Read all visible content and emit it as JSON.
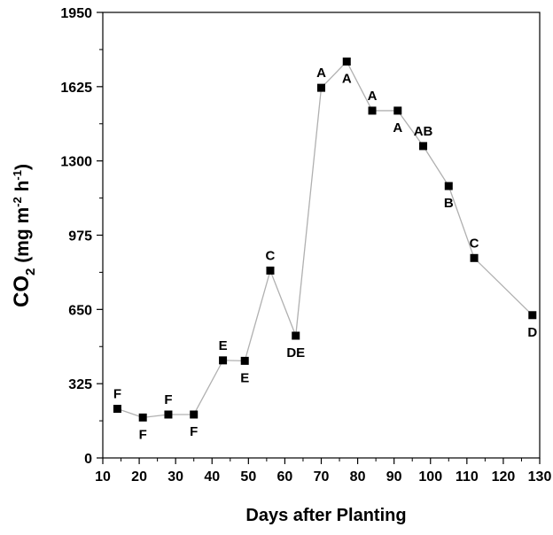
{
  "chart_data": {
    "type": "line",
    "title": "",
    "xlabel": "Days after Planting",
    "ylabel": {
      "main": "CO",
      "sub": "2",
      "unit_open": " (mg m",
      "unit_sup1": "-2",
      "unit_mid": " h",
      "unit_sup2": "-1",
      "unit_close": ")"
    },
    "xlim": [
      10,
      130
    ],
    "ylim": [
      0,
      1950
    ],
    "xticks": [
      10,
      20,
      30,
      40,
      50,
      60,
      70,
      80,
      90,
      100,
      110,
      120,
      130
    ],
    "yticks": [
      0,
      325,
      650,
      975,
      1300,
      1625,
      1950
    ],
    "grid": false,
    "marker": "square",
    "line_color": "#b0b0b0",
    "marker_color": "#000000",
    "series": [
      {
        "x": [
          14,
          21,
          28,
          35,
          43,
          49,
          56,
          63,
          70,
          77,
          84,
          91,
          98,
          105,
          112,
          128
        ],
        "y": [
          215,
          177,
          190,
          190,
          427,
          425,
          820,
          535,
          1620,
          1735,
          1520,
          1520,
          1365,
          1190,
          875,
          625
        ],
        "labels": [
          "F",
          "F",
          "F",
          "F",
          "E",
          "E",
          "C",
          "DE",
          "A",
          "A",
          "A",
          "A",
          "AB",
          "B",
          "C",
          "D"
        ],
        "label_pos": [
          "above",
          "below",
          "above",
          "below",
          "above",
          "below",
          "above",
          "below",
          "above",
          "below",
          "above",
          "below",
          "above",
          "below",
          "above",
          "below"
        ]
      }
    ]
  }
}
